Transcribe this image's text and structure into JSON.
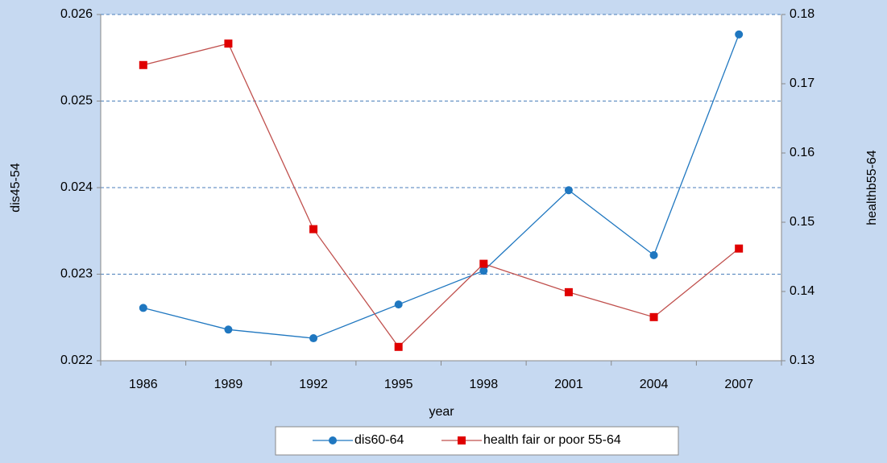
{
  "chart_data": {
    "type": "line",
    "x_label": "year",
    "y_label": "dis45-54",
    "y2_label": "healthb55-64",
    "categories": [
      "1986",
      "1989",
      "1992",
      "1995",
      "1998",
      "2001",
      "2004",
      "2007"
    ],
    "series": [
      {
        "name": "dis60-64",
        "color": "#1f77c0",
        "marker": "circle",
        "values": [
          0.02261,
          0.02236,
          0.02226,
          0.02265,
          0.02304,
          0.02397,
          0.02322,
          0.02577
        ]
      },
      {
        "name": "health fair or poor 55-64",
        "color": "#e00000",
        "line_color": "#c0504d",
        "marker": "square",
        "axis": "y2",
        "values": [
          0.1727,
          0.1758,
          0.149,
          0.132,
          0.144,
          0.1399,
          0.1363,
          0.1462
        ]
      }
    ],
    "ylim": [
      0.022,
      0.026
    ],
    "yticks": [
      0.022,
      0.023,
      0.024,
      0.025,
      0.026
    ],
    "y2lim": [
      0.13,
      0.18
    ],
    "y2ticks": [
      0.13,
      0.14,
      0.15,
      0.16,
      0.17,
      0.18
    ],
    "grid": true,
    "legend": "bottom"
  }
}
